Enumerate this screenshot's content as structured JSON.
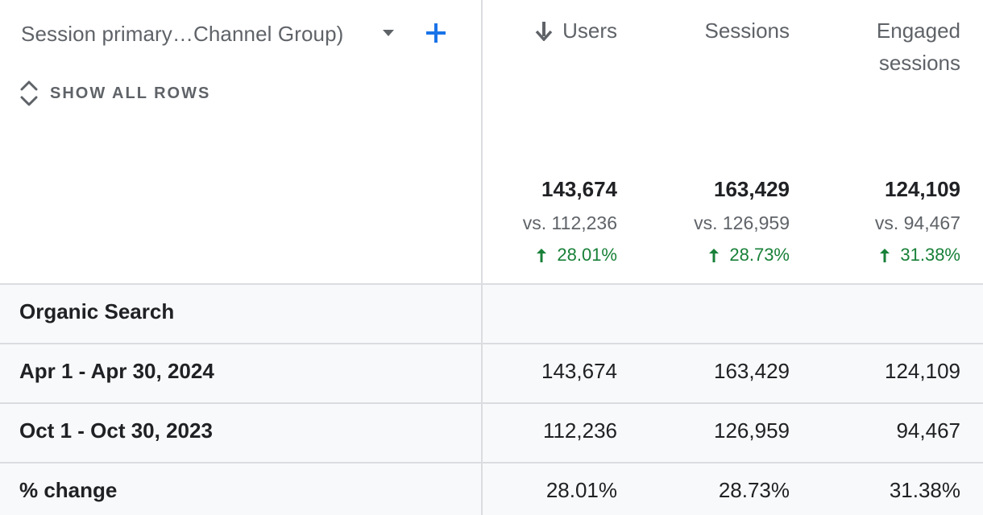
{
  "dimension": {
    "label": "Session primary…Channel Group)",
    "dropdown_icon": "triangle-down-icon",
    "add_icon": "plus-icon"
  },
  "show_all_rows": {
    "label": "SHOW ALL ROWS",
    "icon": "unfold-more-icon"
  },
  "columns": [
    {
      "key": "users",
      "label": "Users",
      "sorted": "descending",
      "sort_icon": "arrow-down-icon"
    },
    {
      "key": "sessions",
      "label": "Sessions"
    },
    {
      "key": "engaged",
      "label": "Engaged sessions"
    }
  ],
  "totals": {
    "users": {
      "value": "143,674",
      "vs": "vs. 112,236",
      "change": "28.01%"
    },
    "sessions": {
      "value": "163,429",
      "vs": "vs. 126,959",
      "change": "28.73%"
    },
    "engaged": {
      "value": "124,109",
      "vs": "vs. 94,467",
      "change": "31.38%"
    }
  },
  "rows": [
    {
      "label": "Organic Search",
      "type": "group",
      "users": "",
      "sessions": "",
      "engaged": ""
    },
    {
      "label": "Apr 1 - Apr 30, 2024",
      "type": "period",
      "users": "143,674",
      "sessions": "163,429",
      "engaged": "124,109"
    },
    {
      "label": "Oct 1 - Oct 30, 2023",
      "type": "period",
      "users": "112,236",
      "sessions": "126,959",
      "engaged": "94,467"
    },
    {
      "label": "% change",
      "type": "change",
      "users": "28.01%",
      "sessions": "28.73%",
      "engaged": "31.38%"
    }
  ],
  "colors": {
    "accent": "#1a73e8",
    "positive": "#188038",
    "muted_text": "#5f6368",
    "primary_text": "#202124",
    "divider": "#dadce0",
    "row_shade": "#f8f9fa"
  }
}
